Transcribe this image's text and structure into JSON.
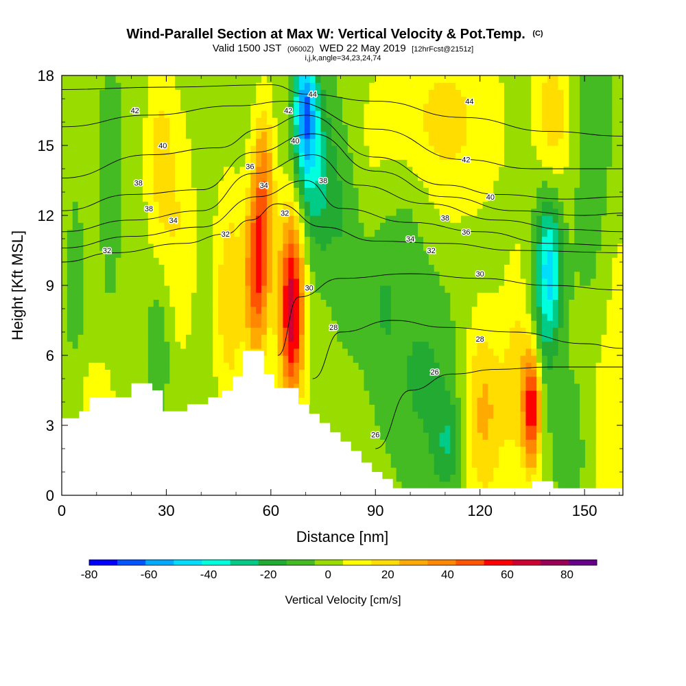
{
  "header": {
    "title": "Wind-Parallel Section at Max W: Vertical Velocity & Pot.Temp.",
    "title_mark": "(C)",
    "valid_prefix": "Valid 1500 JST",
    "valid_utc": "(0600Z)",
    "valid_date": "WED 22 May 2019",
    "forecast_note": "[12hrFcst@2151z]",
    "indices": "i,j,k,angle=34,23,24,74"
  },
  "chart_data": {
    "type": "heatmap",
    "title": "Wind-Parallel Section at Max W: Vertical Velocity & Pot.Temp.",
    "xlabel": "Distance [nm]",
    "ylabel": "Height [Kft MSL]",
    "xlim": [
      0,
      161
    ],
    "ylim": [
      0,
      18
    ],
    "x_ticks": [
      0,
      30,
      60,
      90,
      120,
      150
    ],
    "x_tick_labels": [
      "0",
      "30",
      "60",
      "90",
      "120",
      "150"
    ],
    "y_ticks": [
      0,
      3,
      6,
      9,
      12,
      15,
      18
    ],
    "y_tick_labels": [
      "0",
      "3",
      "6",
      "9",
      "12",
      "15",
      "18"
    ],
    "colorbar": {
      "title": "Vertical Velocity [cm/s]",
      "bounds": [
        -80,
        -70,
        -60,
        -50,
        -40,
        -30,
        -20,
        -10,
        0,
        10,
        20,
        30,
        40,
        50,
        60,
        70,
        80,
        90
      ],
      "colors": [
        "#0000ff",
        "#0055ff",
        "#00aaff",
        "#00ddff",
        "#00ffdd",
        "#00cc88",
        "#22aa33",
        "#44bb22",
        "#99dd00",
        "#ffff00",
        "#ffdd00",
        "#ffaa00",
        "#ff8800",
        "#ff5500",
        "#ff0000",
        "#cc0033",
        "#990055",
        "#660088"
      ],
      "tick_values": [
        -80,
        -60,
        -40,
        -20,
        0,
        20,
        40,
        60,
        80
      ],
      "tick_labels": [
        "-80",
        "-60",
        "-40",
        "-20",
        "0",
        "20",
        "40",
        "60",
        "80"
      ]
    },
    "w_features": [
      {
        "x": 56,
        "z": 9.5,
        "sx": 2.5,
        "sz": 2.6,
        "w": 55
      },
      {
        "x": 66,
        "z": 8.0,
        "sx": 2.6,
        "sz": 3.0,
        "w": 75
      },
      {
        "x": 58,
        "z": 13.5,
        "sx": 2.2,
        "sz": 2.5,
        "w": 35
      },
      {
        "x": 48,
        "z": 8.5,
        "sx": 3.0,
        "sz": 3.5,
        "w": 25
      },
      {
        "x": 34,
        "z": 11.0,
        "sx": 3.5,
        "sz": 4.0,
        "w": 15
      },
      {
        "x": 28,
        "z": 14.5,
        "sx": 3.0,
        "sz": 3.0,
        "w": 20
      },
      {
        "x": 14,
        "z": 14.0,
        "sx": 2.0,
        "sz": 3.5,
        "w": -10
      },
      {
        "x": 4,
        "z": 8.5,
        "sx": 2.5,
        "sz": 4.0,
        "w": -5
      },
      {
        "x": 28,
        "z": 6.5,
        "sx": 2.5,
        "sz": 2.0,
        "w": -12
      },
      {
        "x": 70,
        "z": 16.5,
        "sx": 2.4,
        "sz": 2.2,
        "w": -60
      },
      {
        "x": 74,
        "z": 13.5,
        "sx": 4.0,
        "sz": 2.5,
        "w": -25
      },
      {
        "x": 82,
        "z": 11.0,
        "sx": 3.0,
        "sz": 3.0,
        "w": -10
      },
      {
        "x": 104,
        "z": 5.0,
        "sx": 7.0,
        "sz": 3.0,
        "w": -15
      },
      {
        "x": 111,
        "z": 2.2,
        "sx": 3.0,
        "sz": 1.5,
        "w": -20
      },
      {
        "x": 100,
        "z": 12.0,
        "sx": 4.0,
        "sz": 2.0,
        "w": -8
      },
      {
        "x": 121,
        "z": 3.5,
        "sx": 4.5,
        "sz": 3.0,
        "w": 30
      },
      {
        "x": 135,
        "z": 3.8,
        "sx": 1.8,
        "sz": 1.8,
        "w": 65
      },
      {
        "x": 131,
        "z": 5.5,
        "sx": 3.0,
        "sz": 3.5,
        "w": 20
      },
      {
        "x": 140,
        "z": 10.0,
        "sx": 2.5,
        "sz": 2.5,
        "w": -45
      },
      {
        "x": 137,
        "z": 7.5,
        "sx": 3.0,
        "sz": 3.0,
        "w": -12
      },
      {
        "x": 141,
        "z": 16.0,
        "sx": 3.5,
        "sz": 3.0,
        "w": 25
      },
      {
        "x": 152,
        "z": 15.0,
        "sx": 5.0,
        "sz": 5.0,
        "w": -8
      },
      {
        "x": 110,
        "z": 16.0,
        "sx": 12.0,
        "sz": 3.0,
        "w": 20
      },
      {
        "x": 92,
        "z": 8.5,
        "sx": 4.0,
        "sz": 2.5,
        "w": -12
      },
      {
        "x": 88,
        "z": 15.0,
        "sx": 4.0,
        "sz": 3.0,
        "w": 5
      },
      {
        "x": 10,
        "z": 4.0,
        "sx": 4.0,
        "sz": 1.5,
        "w": 15
      },
      {
        "x": 157,
        "z": 3.0,
        "sx": 4.0,
        "sz": 3.0,
        "w": 15
      },
      {
        "x": 146,
        "z": 2.0,
        "sx": 3.0,
        "sz": 2.0,
        "w": -10
      },
      {
        "x": 160,
        "z": 9.0,
        "sx": 3.0,
        "sz": 3.0,
        "w": 10
      }
    ],
    "terrain": [
      [
        0,
        3.3
      ],
      [
        5,
        3.3
      ],
      [
        5,
        3.6
      ],
      [
        8,
        3.6
      ],
      [
        8,
        4.2
      ],
      [
        20,
        4.2
      ],
      [
        20,
        4.8
      ],
      [
        26,
        4.8
      ],
      [
        26,
        4.5
      ],
      [
        29,
        4.5
      ],
      [
        29,
        3.6
      ],
      [
        36,
        3.6
      ],
      [
        36,
        3.9
      ],
      [
        42,
        3.9
      ],
      [
        42,
        4.2
      ],
      [
        46,
        4.2
      ],
      [
        46,
        4.5
      ],
      [
        49,
        4.5
      ],
      [
        49,
        5.1
      ],
      [
        52,
        5.1
      ],
      [
        52,
        6.2
      ],
      [
        58,
        6.2
      ],
      [
        58,
        5.2
      ],
      [
        61,
        5.2
      ],
      [
        61,
        4.6
      ],
      [
        68,
        4.6
      ],
      [
        68,
        3.9
      ],
      [
        71,
        3.9
      ],
      [
        71,
        3.5
      ],
      [
        74,
        3.5
      ],
      [
        74,
        3.1
      ],
      [
        77,
        3.1
      ],
      [
        77,
        2.7
      ],
      [
        80,
        2.7
      ],
      [
        80,
        2.3
      ],
      [
        83,
        2.3
      ],
      [
        83,
        1.9
      ],
      [
        86,
        1.9
      ],
      [
        86,
        1.4
      ],
      [
        89,
        1.4
      ],
      [
        89,
        1.0
      ],
      [
        92,
        1.0
      ],
      [
        92,
        0.7
      ],
      [
        95,
        0.7
      ],
      [
        95,
        0.3
      ],
      [
        135,
        0.3
      ],
      [
        135,
        0.6
      ],
      [
        141,
        0.6
      ],
      [
        141,
        0.3
      ],
      [
        161,
        0.3
      ]
    ],
    "theta_levels": [
      {
        "theta": 26,
        "points": [
          [
            90,
            2.0
          ],
          [
            100,
            4.5
          ],
          [
            112,
            5.2
          ],
          [
            125,
            5.4
          ],
          [
            140,
            5.5
          ],
          [
            161,
            5.5
          ]
        ]
      },
      {
        "theta": 28,
        "points": [
          [
            72,
            5.0
          ],
          [
            80,
            7.0
          ],
          [
            95,
            7.5
          ],
          [
            110,
            7.2
          ],
          [
            130,
            7.0
          ],
          [
            150,
            6.5
          ],
          [
            161,
            6.3
          ]
        ]
      },
      {
        "theta": 30,
        "points": [
          [
            62,
            6.0
          ],
          [
            68,
            8.5
          ],
          [
            80,
            9.3
          ],
          [
            100,
            9.5
          ],
          [
            120,
            9.3
          ],
          [
            140,
            9.0
          ],
          [
            161,
            8.8
          ]
        ]
      },
      {
        "theta": 32,
        "points": [
          [
            0,
            10.0
          ],
          [
            15,
            10.4
          ],
          [
            35,
            10.8
          ],
          [
            47,
            11.2
          ],
          [
            54,
            11.8
          ],
          [
            62,
            12.5
          ],
          [
            75,
            11.5
          ],
          [
            90,
            10.9
          ],
          [
            110,
            10.8
          ],
          [
            130,
            10.5
          ],
          [
            161,
            10.4
          ]
        ]
      },
      {
        "theta": 34,
        "points": [
          [
            0,
            10.6
          ],
          [
            20,
            11.1
          ],
          [
            40,
            11.5
          ],
          [
            56,
            12.8
          ],
          [
            70,
            13.5
          ],
          [
            80,
            12.3
          ],
          [
            100,
            11.7
          ],
          [
            120,
            11.3
          ],
          [
            140,
            10.8
          ],
          [
            161,
            10.7
          ]
        ]
      },
      {
        "theta": 36,
        "points": [
          [
            0,
            11.3
          ],
          [
            20,
            11.8
          ],
          [
            40,
            12.2
          ],
          [
            55,
            13.8
          ],
          [
            72,
            14.6
          ],
          [
            85,
            13.3
          ],
          [
            105,
            12.5
          ],
          [
            125,
            11.8
          ],
          [
            145,
            11.4
          ],
          [
            161,
            11.3
          ]
        ]
      },
      {
        "theta": 38,
        "points": [
          [
            0,
            12.2
          ],
          [
            20,
            12.9
          ],
          [
            40,
            13.1
          ],
          [
            55,
            14.7
          ],
          [
            72,
            15.5
          ],
          [
            90,
            13.9
          ],
          [
            110,
            12.8
          ],
          [
            130,
            12.2
          ],
          [
            150,
            12.0
          ],
          [
            161,
            12.1
          ]
        ]
      },
      {
        "theta": 40,
        "points": [
          [
            0,
            13.6
          ],
          [
            25,
            14.6
          ],
          [
            45,
            14.9
          ],
          [
            57,
            15.7
          ],
          [
            70,
            16.3
          ],
          [
            90,
            14.5
          ],
          [
            110,
            13.3
          ],
          [
            125,
            12.9
          ],
          [
            145,
            12.7
          ],
          [
            161,
            12.8
          ]
        ]
      },
      {
        "theta": 42,
        "points": [
          [
            0,
            15.8
          ],
          [
            25,
            16.3
          ],
          [
            50,
            16.7
          ],
          [
            65,
            16.9
          ],
          [
            90,
            15.7
          ],
          [
            115,
            14.4
          ],
          [
            135,
            14.0
          ],
          [
            161,
            14.0
          ]
        ]
      },
      {
        "theta": 44,
        "points": [
          [
            0,
            17.4
          ],
          [
            30,
            17.5
          ],
          [
            60,
            17.6
          ],
          [
            70,
            17.2
          ],
          [
            90,
            16.9
          ],
          [
            115,
            16.2
          ],
          [
            140,
            15.6
          ],
          [
            161,
            15.4
          ]
        ]
      }
    ],
    "contour_labels": [
      {
        "text": "42",
        "x": 21,
        "z": 16.5
      },
      {
        "text": "40",
        "x": 29,
        "z": 15.0
      },
      {
        "text": "38",
        "x": 22,
        "z": 13.4
      },
      {
        "text": "36",
        "x": 54,
        "z": 14.1
      },
      {
        "text": "34",
        "x": 58,
        "z": 13.3
      },
      {
        "text": "38",
        "x": 25,
        "z": 12.3
      },
      {
        "text": "34",
        "x": 32,
        "z": 11.8
      },
      {
        "text": "32",
        "x": 64,
        "z": 12.1
      },
      {
        "text": "32",
        "x": 47,
        "z": 11.2
      },
      {
        "text": "32",
        "x": 13,
        "z": 10.5
      },
      {
        "text": "44",
        "x": 72,
        "z": 17.2
      },
      {
        "text": "42",
        "x": 65,
        "z": 16.5
      },
      {
        "text": "40",
        "x": 67,
        "z": 15.2
      },
      {
        "text": "38",
        "x": 75,
        "z": 13.5
      },
      {
        "text": "44",
        "x": 117,
        "z": 16.9
      },
      {
        "text": "42",
        "x": 116,
        "z": 14.4
      },
      {
        "text": "40",
        "x": 123,
        "z": 12.8
      },
      {
        "text": "38",
        "x": 110,
        "z": 11.9
      },
      {
        "text": "36",
        "x": 116,
        "z": 11.3
      },
      {
        "text": "34",
        "x": 100,
        "z": 11.0
      },
      {
        "text": "32",
        "x": 106,
        "z": 10.5
      },
      {
        "text": "30",
        "x": 120,
        "z": 9.5
      },
      {
        "text": "30",
        "x": 71,
        "z": 8.9
      },
      {
        "text": "28",
        "x": 78,
        "z": 7.2
      },
      {
        "text": "28",
        "x": 120,
        "z": 6.7
      },
      {
        "text": "26",
        "x": 107,
        "z": 5.3
      },
      {
        "text": "26",
        "x": 90,
        "z": 2.6
      }
    ]
  }
}
